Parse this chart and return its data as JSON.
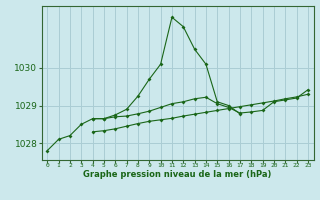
{
  "xlabel": "Graphe pression niveau de la mer (hPa)",
  "background_color": "#cce8ec",
  "grid_color": "#aacdd4",
  "line_color": "#1a6618",
  "spine_color": "#336633",
  "hours": [
    0,
    1,
    2,
    3,
    4,
    5,
    6,
    7,
    8,
    9,
    10,
    11,
    12,
    13,
    14,
    15,
    16,
    17,
    18,
    19,
    20,
    21,
    22,
    23
  ],
  "series1": [
    1027.8,
    1028.1,
    1028.2,
    1028.5,
    1028.65,
    1028.65,
    1028.75,
    1028.9,
    1029.25,
    1029.7,
    1030.1,
    1031.35,
    1031.1,
    1030.5,
    1030.1,
    1029.1,
    1029.0,
    1028.78,
    null,
    null,
    null,
    null,
    null,
    null
  ],
  "series2": [
    null,
    null,
    null,
    null,
    1028.65,
    1028.65,
    1028.7,
    1028.72,
    1028.78,
    1028.85,
    1028.95,
    1029.05,
    1029.1,
    1029.18,
    1029.22,
    1029.05,
    1028.95,
    1028.8,
    1028.83,
    1028.87,
    1029.1,
    1029.15,
    1029.2,
    1029.42
  ],
  "series3": [
    null,
    null,
    null,
    null,
    1028.3,
    1028.33,
    1028.38,
    1028.45,
    1028.52,
    1028.58,
    1028.62,
    1028.66,
    1028.72,
    1028.77,
    1028.82,
    1028.87,
    1028.92,
    1028.97,
    1029.02,
    1029.07,
    1029.12,
    1029.18,
    1029.23,
    1029.3
  ],
  "ylim": [
    1027.55,
    1031.65
  ],
  "yticks": [
    1028,
    1029,
    1030
  ],
  "xlim": [
    -0.5,
    23.5
  ]
}
